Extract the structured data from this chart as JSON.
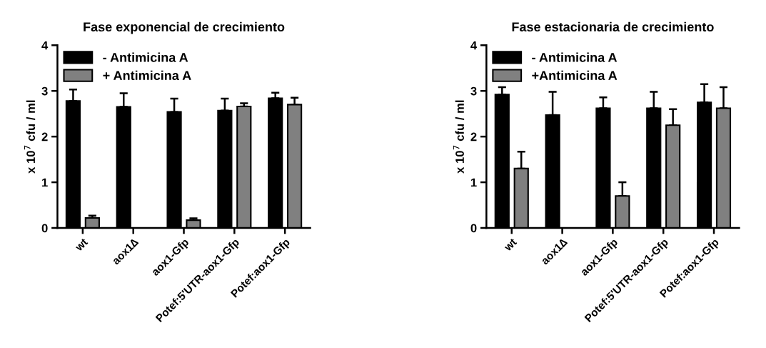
{
  "chart_data": [
    {
      "type": "bar",
      "title": "Fase exponencial de crecimiento",
      "ylabel": "x 10$^{7}$ cfu / ml",
      "categories": [
        "wt",
        "aox1∆",
        "aox1-Gfp",
        "Potef:5'UTR-aox1-Gfp",
        "Potef:aox1-Gfp"
      ],
      "ylim": [
        0,
        4
      ],
      "yticks": [
        0,
        1,
        2,
        3,
        4
      ],
      "legend": "top left",
      "grid": false,
      "series": [
        {
          "name": "- Antimicina A",
          "color": "#000000",
          "values": [
            2.78,
            2.65,
            2.54,
            2.57,
            2.84
          ],
          "errors": [
            0.25,
            0.3,
            0.29,
            0.26,
            0.12
          ]
        },
        {
          "name": "+ Antimicina A",
          "color": "#808080",
          "values": [
            0.22,
            null,
            0.17,
            2.66,
            2.7
          ],
          "errors": [
            0.05,
            null,
            0.04,
            0.07,
            0.15
          ]
        }
      ]
    },
    {
      "type": "bar",
      "title": "Fase estacionaria de crecimiento",
      "ylabel": "x 10$^{7}$ cfu / ml",
      "categories": [
        "wt",
        "aox1∆",
        "aox1-Gfp",
        "Potef:5'UTR-aox1-Gfp",
        "Potef:aox1-Gfp"
      ],
      "ylim": [
        0,
        4
      ],
      "yticks": [
        0,
        1,
        2,
        3,
        4
      ],
      "legend": "top left",
      "grid": false,
      "series": [
        {
          "name": "- Antimicina A",
          "color": "#000000",
          "values": [
            2.92,
            2.47,
            2.62,
            2.62,
            2.75
          ],
          "errors": [
            0.16,
            0.51,
            0.24,
            0.36,
            0.4
          ]
        },
        {
          "name": "+Antimicina A",
          "color": "#808080",
          "values": [
            1.3,
            null,
            0.7,
            2.25,
            2.62
          ],
          "errors": [
            0.37,
            null,
            0.3,
            0.35,
            0.46
          ]
        }
      ]
    }
  ]
}
